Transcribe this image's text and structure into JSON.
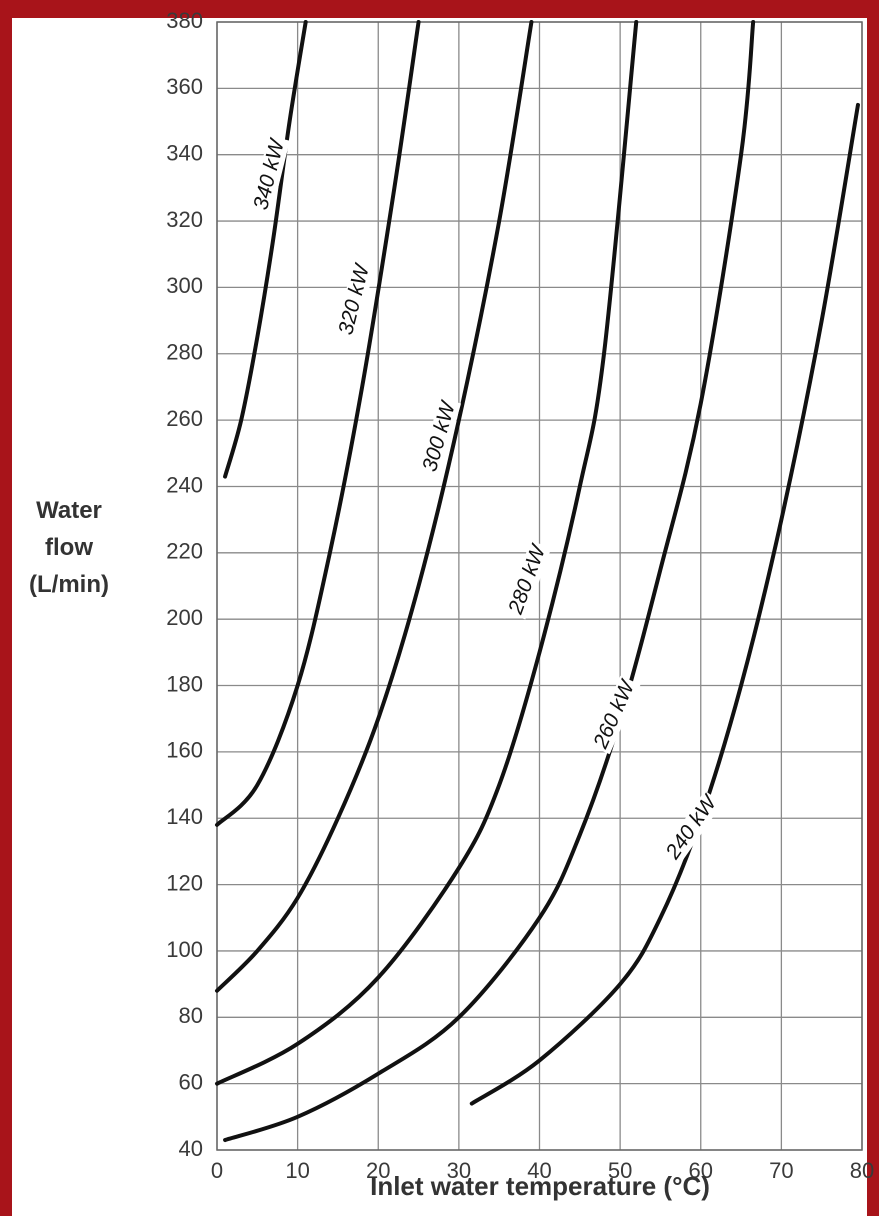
{
  "chart_data": {
    "type": "line",
    "x_label": "Inlet water temperature (°C)",
    "y_label": "Water flow (L/min)",
    "xlim": [
      0,
      80
    ],
    "ylim": [
      40,
      380
    ],
    "xticks": [
      0,
      10,
      20,
      30,
      40,
      50,
      60,
      70,
      80
    ],
    "yticks": [
      40,
      60,
      80,
      100,
      120,
      140,
      160,
      180,
      200,
      220,
      240,
      260,
      280,
      300,
      320,
      340,
      360,
      380
    ],
    "grid": true,
    "series": [
      {
        "name": "340 kW",
        "color": "#111111",
        "x": [
          1,
          3,
          5,
          7,
          9,
          11
        ],
        "values": [
          243,
          260,
          285,
          315,
          350,
          380
        ]
      },
      {
        "name": "320 kW",
        "color": "#111111",
        "x": [
          0,
          5,
          10,
          14,
          18,
          22,
          25
        ],
        "values": [
          138,
          150,
          180,
          220,
          270,
          330,
          380
        ]
      },
      {
        "name": "300 kW",
        "color": "#111111",
        "x": [
          0,
          5,
          10,
          15,
          20,
          25,
          30,
          35,
          39
        ],
        "values": [
          88,
          100,
          116,
          140,
          170,
          210,
          260,
          320,
          380
        ]
      },
      {
        "name": "280 kW",
        "color": "#111111",
        "x": [
          0,
          10,
          20,
          30,
          35,
          40,
          45,
          48,
          52
        ],
        "values": [
          60,
          72,
          92,
          125,
          150,
          190,
          240,
          280,
          380
        ]
      },
      {
        "name": "260 kW",
        "color": "#111111",
        "x": [
          1,
          10,
          20,
          30,
          40,
          45,
          50,
          55,
          60,
          65,
          66.5
        ],
        "values": [
          43,
          50,
          63,
          80,
          110,
          135,
          170,
          215,
          265,
          340,
          380
        ]
      },
      {
        "name": "240 kW",
        "color": "#111111",
        "x": [
          31.6,
          40,
          50,
          55,
          60,
          65,
          70,
          75,
          79.5
        ],
        "values": [
          54,
          67,
          90,
          110,
          140,
          180,
          230,
          290,
          355
        ]
      }
    ]
  }
}
